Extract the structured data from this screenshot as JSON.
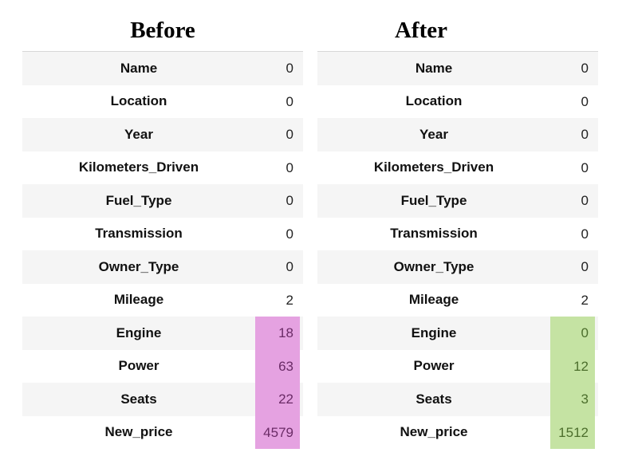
{
  "colors": {
    "highlight_before": "#e5a2e1",
    "highlight_after": "#c5e3a3"
  },
  "before": {
    "title": "Before",
    "rows": [
      {
        "label": "Name",
        "value": "0",
        "highlight": false
      },
      {
        "label": "Location",
        "value": "0",
        "highlight": false
      },
      {
        "label": "Year",
        "value": "0",
        "highlight": false
      },
      {
        "label": "Kilometers_Driven",
        "value": "0",
        "highlight": false
      },
      {
        "label": "Fuel_Type",
        "value": "0",
        "highlight": false
      },
      {
        "label": "Transmission",
        "value": "0",
        "highlight": false
      },
      {
        "label": "Owner_Type",
        "value": "0",
        "highlight": false
      },
      {
        "label": "Mileage",
        "value": "2",
        "highlight": false
      },
      {
        "label": "Engine",
        "value": "18",
        "highlight": true
      },
      {
        "label": "Power",
        "value": "63",
        "highlight": true
      },
      {
        "label": "Seats",
        "value": "22",
        "highlight": true
      },
      {
        "label": "New_price",
        "value": "4579",
        "highlight": true
      }
    ]
  },
  "after": {
    "title": "After",
    "rows": [
      {
        "label": "Name",
        "value": "0",
        "highlight": false
      },
      {
        "label": "Location",
        "value": "0",
        "highlight": false
      },
      {
        "label": "Year",
        "value": "0",
        "highlight": false
      },
      {
        "label": "Kilometers_Driven",
        "value": "0",
        "highlight": false
      },
      {
        "label": "Fuel_Type",
        "value": "0",
        "highlight": false
      },
      {
        "label": "Transmission",
        "value": "0",
        "highlight": false
      },
      {
        "label": "Owner_Type",
        "value": "0",
        "highlight": false
      },
      {
        "label": "Mileage",
        "value": "2",
        "highlight": false
      },
      {
        "label": "Engine",
        "value": "0",
        "highlight": true
      },
      {
        "label": "Power",
        "value": "12",
        "highlight": true
      },
      {
        "label": "Seats",
        "value": "3",
        "highlight": true
      },
      {
        "label": "New_price",
        "value": "1512",
        "highlight": true
      }
    ]
  }
}
